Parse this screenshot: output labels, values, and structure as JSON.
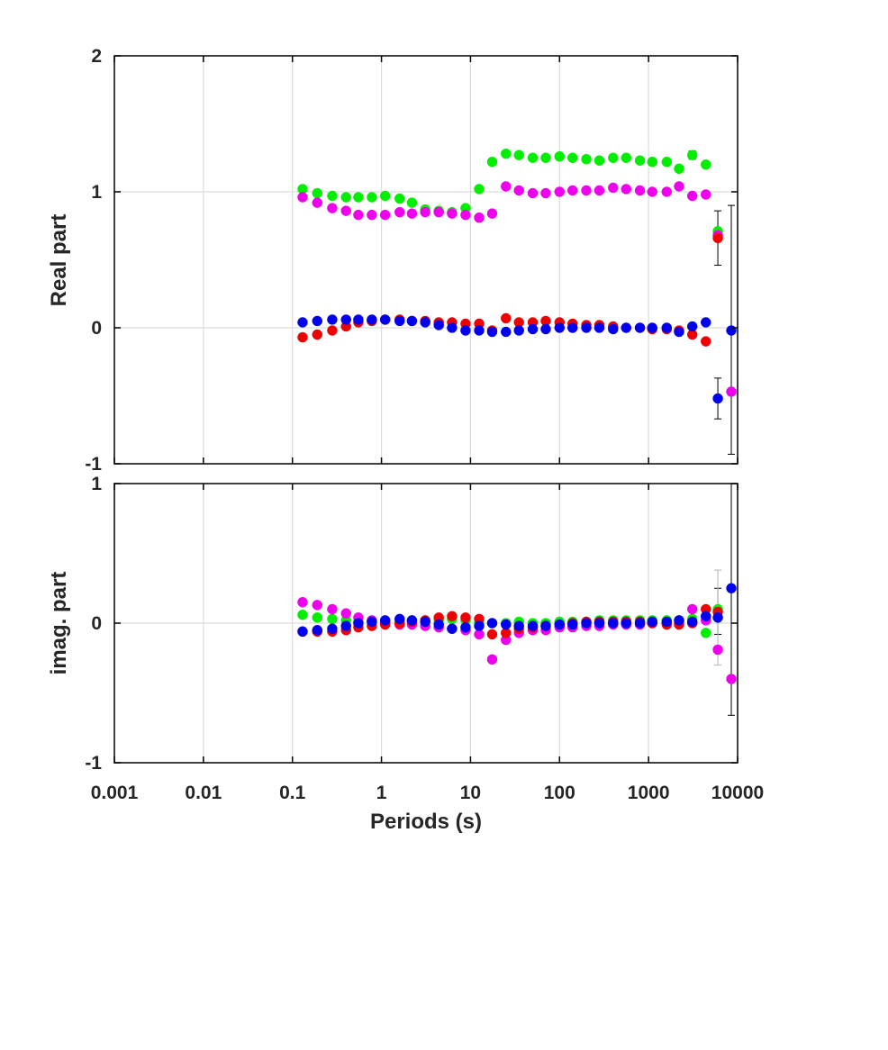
{
  "chart_data": [
    {
      "type": "scatter",
      "xscale": "log",
      "xlim": [
        0.001,
        10000
      ],
      "ylim": [
        -1,
        2
      ],
      "grid": true,
      "ylabel": "Real part",
      "xlabel": "",
      "yticks": [
        "-1",
        "0",
        "1",
        "2"
      ],
      "series": [
        {
          "color": "#00ee00",
          "points": [
            [
              0.13,
              1.02
            ],
            [
              0.19,
              0.99
            ],
            [
              0.28,
              0.97
            ],
            [
              0.4,
              0.96
            ],
            [
              0.55,
              0.96
            ],
            [
              0.78,
              0.96
            ],
            [
              1.1,
              0.97
            ],
            [
              1.6,
              0.95
            ],
            [
              2.2,
              0.92
            ],
            [
              3.1,
              0.87
            ],
            [
              4.4,
              0.86
            ],
            [
              6.2,
              0.85
            ],
            [
              8.8,
              0.88
            ],
            [
              12.5,
              1.02
            ],
            [
              17.5,
              1.22
            ],
            [
              25,
              1.28
            ],
            [
              35,
              1.27
            ],
            [
              50,
              1.25
            ],
            [
              70,
              1.25
            ],
            [
              100,
              1.26
            ],
            [
              140,
              1.25
            ],
            [
              200,
              1.24
            ],
            [
              280,
              1.23
            ],
            [
              400,
              1.25
            ],
            [
              560,
              1.25
            ],
            [
              800,
              1.23
            ],
            [
              1100,
              1.22
            ],
            [
              1600,
              1.22
            ],
            [
              2200,
              1.17
            ],
            [
              3100,
              1.27
            ],
            [
              4400,
              1.2
            ],
            [
              6000,
              0.71
            ],
            [
              8500,
              -0.47
            ]
          ]
        },
        {
          "color": "#ee00ee",
          "points": [
            [
              0.13,
              0.96
            ],
            [
              0.19,
              0.92
            ],
            [
              0.28,
              0.88
            ],
            [
              0.4,
              0.86
            ],
            [
              0.55,
              0.83
            ],
            [
              0.78,
              0.83
            ],
            [
              1.1,
              0.83
            ],
            [
              1.6,
              0.85
            ],
            [
              2.2,
              0.84
            ],
            [
              3.1,
              0.85
            ],
            [
              4.4,
              0.85
            ],
            [
              6.2,
              0.84
            ],
            [
              8.8,
              0.83
            ],
            [
              12.5,
              0.81
            ],
            [
              17.5,
              0.84
            ],
            [
              25,
              1.04
            ],
            [
              35,
              1.01
            ],
            [
              50,
              0.99
            ],
            [
              70,
              0.99
            ],
            [
              100,
              1.0
            ],
            [
              140,
              1.01
            ],
            [
              200,
              1.01
            ],
            [
              280,
              1.01
            ],
            [
              400,
              1.03
            ],
            [
              560,
              1.02
            ],
            [
              800,
              1.01
            ],
            [
              1100,
              1.0
            ],
            [
              1600,
              1.0
            ],
            [
              2200,
              1.04
            ],
            [
              3100,
              0.97
            ],
            [
              4400,
              0.98
            ],
            [
              6000,
              0.68
            ],
            [
              8500,
              -0.47
            ]
          ]
        },
        {
          "color": "#ee0000",
          "points": [
            [
              0.13,
              -0.07
            ],
            [
              0.19,
              -0.05
            ],
            [
              0.28,
              -0.02
            ],
            [
              0.4,
              0.01
            ],
            [
              0.55,
              0.04
            ],
            [
              0.78,
              0.05
            ],
            [
              1.1,
              0.06
            ],
            [
              1.6,
              0.06
            ],
            [
              2.2,
              0.05
            ],
            [
              3.1,
              0.05
            ],
            [
              4.4,
              0.04
            ],
            [
              6.2,
              0.04
            ],
            [
              8.8,
              0.03
            ],
            [
              12.5,
              0.03
            ],
            [
              17.5,
              -0.02
            ],
            [
              25,
              0.07
            ],
            [
              35,
              0.04
            ],
            [
              50,
              0.04
            ],
            [
              70,
              0.05
            ],
            [
              100,
              0.04
            ],
            [
              140,
              0.03
            ],
            [
              200,
              0.02
            ],
            [
              280,
              0.02
            ],
            [
              400,
              0.01
            ],
            [
              560,
              0.0
            ],
            [
              800,
              0.0
            ],
            [
              1100,
              -0.01
            ],
            [
              1600,
              -0.01
            ],
            [
              2200,
              -0.02
            ],
            [
              3100,
              -0.05
            ],
            [
              4400,
              -0.1
            ],
            [
              6000,
              0.66
            ]
          ]
        },
        {
          "color": "#0000ee",
          "points": [
            [
              0.13,
              0.04
            ],
            [
              0.19,
              0.05
            ],
            [
              0.28,
              0.06
            ],
            [
              0.4,
              0.06
            ],
            [
              0.55,
              0.06
            ],
            [
              0.78,
              0.06
            ],
            [
              1.1,
              0.06
            ],
            [
              1.6,
              0.05
            ],
            [
              2.2,
              0.05
            ],
            [
              3.1,
              0.04
            ],
            [
              4.4,
              0.02
            ],
            [
              6.2,
              0.0
            ],
            [
              8.8,
              -0.02
            ],
            [
              12.5,
              -0.02
            ],
            [
              17.5,
              -0.03
            ],
            [
              25,
              -0.03
            ],
            [
              35,
              -0.02
            ],
            [
              50,
              -0.01
            ],
            [
              70,
              -0.01
            ],
            [
              100,
              0.0
            ],
            [
              140,
              0.0
            ],
            [
              200,
              0.0
            ],
            [
              280,
              0.0
            ],
            [
              400,
              -0.01
            ],
            [
              560,
              0.0
            ],
            [
              800,
              0.0
            ],
            [
              1100,
              0.0
            ],
            [
              1600,
              0.0
            ],
            [
              2200,
              -0.03
            ],
            [
              3100,
              0.01
            ],
            [
              4400,
              0.04
            ],
            [
              6000,
              -0.52
            ],
            [
              8500,
              -0.02
            ]
          ]
        }
      ],
      "errorbars": [
        {
          "x": 6000,
          "y": 0.66,
          "low": 0.46,
          "high": 0.86
        },
        {
          "x": 6000,
          "y": -0.52,
          "low": -0.67,
          "high": -0.37
        },
        {
          "x": 8500,
          "y": -0.02,
          "low": -0.93,
          "high": 0.9
        },
        {
          "x": 3100,
          "y": 1.27,
          "low": 1.24,
          "high": 1.3
        }
      ]
    },
    {
      "type": "scatter",
      "xscale": "log",
      "xlim": [
        0.001,
        10000
      ],
      "ylim": [
        -1,
        1
      ],
      "grid": true,
      "ylabel": "imag. part",
      "xlabel": "Periods (s)",
      "yticks": [
        "-1",
        "0",
        "1"
      ],
      "xticks": [
        "0.001",
        "0.01",
        "0.1",
        "1",
        "10",
        "100",
        "1000",
        "10000"
      ],
      "series": [
        {
          "color": "#00ee00",
          "points": [
            [
              0.13,
              0.06
            ],
            [
              0.19,
              0.04
            ],
            [
              0.28,
              0.03
            ],
            [
              0.4,
              0.02
            ],
            [
              0.55,
              0.01
            ],
            [
              0.78,
              0.01
            ],
            [
              1.1,
              0.01
            ],
            [
              1.6,
              0.01
            ],
            [
              2.2,
              0.02
            ],
            [
              3.1,
              0.02
            ],
            [
              4.4,
              0.02
            ],
            [
              6.2,
              0.03
            ],
            [
              8.8,
              0.02
            ],
            [
              12.5,
              0.0
            ],
            [
              17.5,
              0.0
            ],
            [
              25,
              0.0
            ],
            [
              35,
              0.01
            ],
            [
              50,
              0.0
            ],
            [
              70,
              0.0
            ],
            [
              100,
              0.01
            ],
            [
              140,
              0.01
            ],
            [
              200,
              0.01
            ],
            [
              280,
              0.02
            ],
            [
              400,
              0.02
            ],
            [
              560,
              0.02
            ],
            [
              800,
              0.02
            ],
            [
              1100,
              0.02
            ],
            [
              1600,
              0.02
            ],
            [
              2200,
              0.02
            ],
            [
              3100,
              0.03
            ],
            [
              4400,
              -0.07
            ],
            [
              6000,
              0.1
            ]
          ]
        },
        {
          "color": "#ee00ee",
          "points": [
            [
              0.13,
              0.15
            ],
            [
              0.19,
              0.13
            ],
            [
              0.28,
              0.1
            ],
            [
              0.4,
              0.07
            ],
            [
              0.55,
              0.04
            ],
            [
              0.78,
              0.02
            ],
            [
              1.1,
              0.0
            ],
            [
              1.6,
              -0.01
            ],
            [
              2.2,
              -0.01
            ],
            [
              3.1,
              -0.02
            ],
            [
              4.4,
              -0.03
            ],
            [
              6.2,
              -0.04
            ],
            [
              8.8,
              -0.05
            ],
            [
              12.5,
              -0.08
            ],
            [
              17.5,
              -0.26
            ],
            [
              25,
              -0.12
            ],
            [
              35,
              -0.07
            ],
            [
              50,
              -0.05
            ],
            [
              70,
              -0.05
            ],
            [
              100,
              -0.03
            ],
            [
              140,
              -0.03
            ],
            [
              200,
              -0.02
            ],
            [
              280,
              -0.02
            ],
            [
              400,
              -0.01
            ],
            [
              560,
              -0.01
            ],
            [
              800,
              -0.01
            ],
            [
              1100,
              0.0
            ],
            [
              1600,
              0.0
            ],
            [
              2200,
              0.01
            ],
            [
              3100,
              0.1
            ],
            [
              4400,
              0.02
            ],
            [
              6000,
              -0.19
            ],
            [
              8500,
              -0.4
            ]
          ]
        },
        {
          "color": "#ee0000",
          "points": [
            [
              0.13,
              -0.06
            ],
            [
              0.19,
              -0.06
            ],
            [
              0.28,
              -0.06
            ],
            [
              0.4,
              -0.05
            ],
            [
              0.55,
              -0.03
            ],
            [
              0.78,
              -0.02
            ],
            [
              1.1,
              -0.01
            ],
            [
              1.6,
              0.0
            ],
            [
              2.2,
              0.01
            ],
            [
              3.1,
              0.02
            ],
            [
              4.4,
              0.04
            ],
            [
              6.2,
              0.05
            ],
            [
              8.8,
              0.04
            ],
            [
              12.5,
              0.03
            ],
            [
              17.5,
              -0.08
            ],
            [
              25,
              -0.07
            ],
            [
              35,
              -0.04
            ],
            [
              50,
              -0.03
            ],
            [
              70,
              -0.02
            ],
            [
              100,
              -0.01
            ],
            [
              140,
              0.0
            ],
            [
              200,
              0.01
            ],
            [
              280,
              0.01
            ],
            [
              400,
              0.01
            ],
            [
              560,
              0.01
            ],
            [
              800,
              0.01
            ],
            [
              1100,
              0.0
            ],
            [
              1600,
              -0.01
            ],
            [
              2200,
              -0.01
            ],
            [
              3100,
              0.0
            ],
            [
              4400,
              0.1
            ],
            [
              6000,
              0.08
            ]
          ]
        },
        {
          "color": "#0000ee",
          "points": [
            [
              0.13,
              -0.06
            ],
            [
              0.19,
              -0.05
            ],
            [
              0.28,
              -0.04
            ],
            [
              0.4,
              -0.02
            ],
            [
              0.55,
              0.0
            ],
            [
              0.78,
              0.01
            ],
            [
              1.1,
              0.02
            ],
            [
              1.6,
              0.03
            ],
            [
              2.2,
              0.02
            ],
            [
              3.1,
              0.01
            ],
            [
              4.4,
              -0.01
            ],
            [
              6.2,
              -0.04
            ],
            [
              8.8,
              -0.03
            ],
            [
              12.5,
              -0.02
            ],
            [
              17.5,
              0.0
            ],
            [
              25,
              -0.01
            ],
            [
              35,
              -0.02
            ],
            [
              50,
              -0.02
            ],
            [
              70,
              -0.02
            ],
            [
              100,
              -0.01
            ],
            [
              140,
              -0.01
            ],
            [
              200,
              0.0
            ],
            [
              280,
              0.0
            ],
            [
              400,
              0.0
            ],
            [
              560,
              0.0
            ],
            [
              800,
              0.0
            ],
            [
              1100,
              0.01
            ],
            [
              1600,
              0.01
            ],
            [
              2200,
              0.02
            ],
            [
              3100,
              0.01
            ],
            [
              4400,
              0.05
            ],
            [
              6000,
              0.04
            ],
            [
              8500,
              0.25
            ]
          ]
        }
      ],
      "errorbars": [
        {
          "x": 6000,
          "y": 0.08,
          "low": -0.08,
          "high": 0.25
        },
        {
          "x": 6000,
          "y": -0.19,
          "low": -0.3,
          "high": 0.38,
          "light": true
        },
        {
          "x": 8500,
          "y": -0.4,
          "low": -0.66,
          "high": 1.0
        }
      ]
    }
  ]
}
